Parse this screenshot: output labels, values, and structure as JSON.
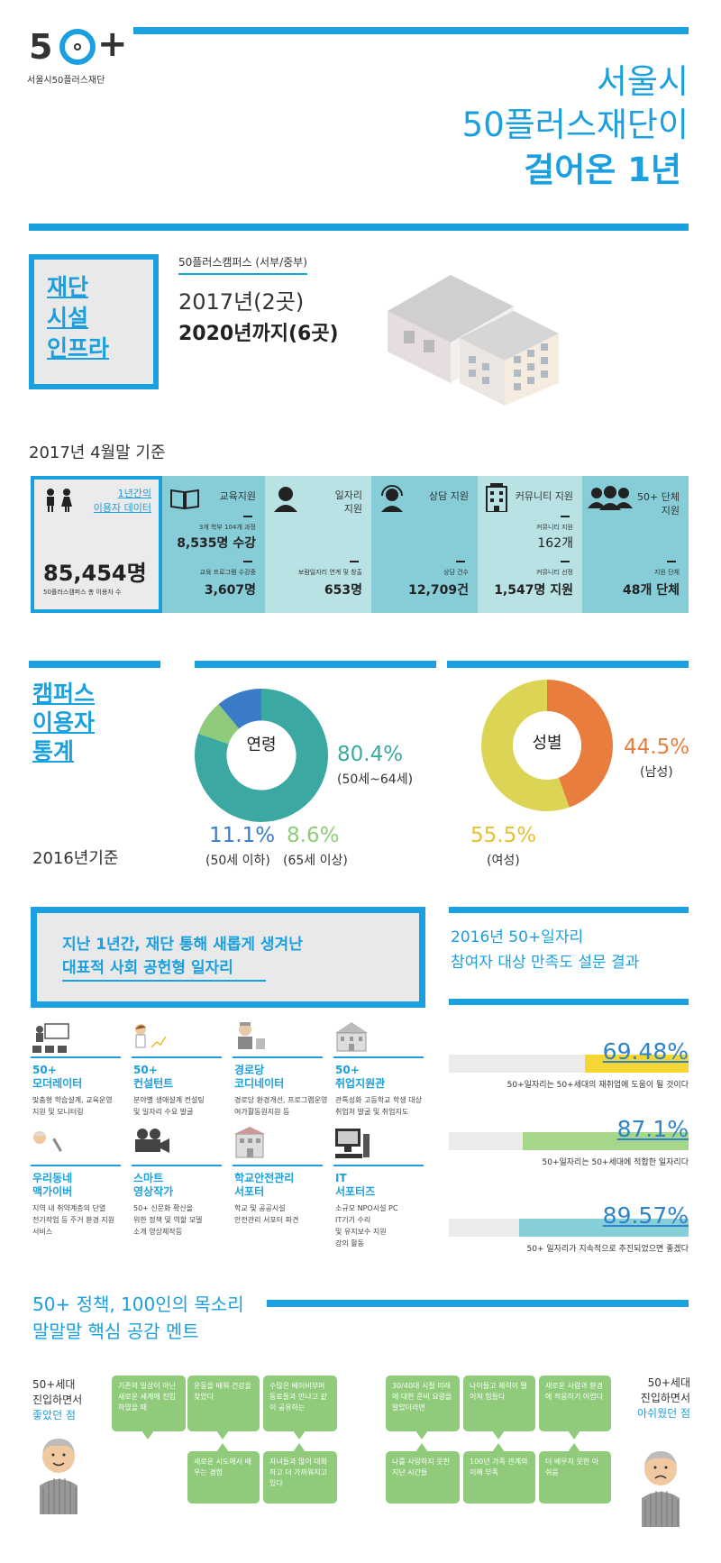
{
  "header": {
    "logo_text": "50+",
    "logo_sub": "서울시50플러스재단",
    "title_line1": "서울시",
    "title_line2": "50플러스재단이",
    "title_line3": "걸어온 1년",
    "accent_color": "#1a9fdf"
  },
  "facility": {
    "box_lines": [
      "재단",
      "시설",
      "인프라"
    ],
    "campus_label": "50플러스캠퍼스 (서부/중부)",
    "year_2017": "2017년(2곳)",
    "year_2020": "2020년까지(6곳)"
  },
  "stats": {
    "date_label": "2017년 4월말 기준",
    "user_data_label": [
      "1년간의",
      "이용자 데이터"
    ],
    "total_value": "85,454명",
    "total_caption": "50플러스캠퍼스 총 이용자 수",
    "columns": [
      {
        "icon": "book-icon",
        "label": "교육지원",
        "sub1": "3개 학부 104개 과정",
        "val1": "8,535명 수강",
        "sub2": "교육 프로그램 수강중",
        "val2": "3,607명"
      },
      {
        "icon": "worker-icon",
        "label": "일자리\n지원",
        "sub1": "",
        "val1": "",
        "sub2": "보람일자리 연계 및 창출",
        "val2": "653명"
      },
      {
        "icon": "headset-icon",
        "label": "상담 지원",
        "sub1": "",
        "val1": "",
        "sub2": "상담 건수",
        "val2": "12,709건"
      },
      {
        "icon": "building-icon",
        "label": "커뮤니티 지원",
        "sub1": "커뮤니티 지원",
        "val1": "162개",
        "sub2": "커뮤니티 선정",
        "val2": "1,547명 지원"
      },
      {
        "icon": "group-icon",
        "label": "50+ 단체\n지원",
        "sub1": "",
        "val1": "",
        "sub2": "지원 단체",
        "val2": "48개 단체"
      }
    ]
  },
  "campus": {
    "title_lines": [
      "캠퍼스",
      "이용자",
      "통계"
    ],
    "basis": "2016년기준",
    "age": {
      "label": "연령",
      "slices": [
        {
          "pct": 80.4,
          "text": "80.4%",
          "desc": "(50세~64세)",
          "color": "#3ba9a2"
        },
        {
          "pct": 8.6,
          "text": "8.6%",
          "desc": "(65세 이상)",
          "color": "#8fcb7a"
        },
        {
          "pct": 11.1,
          "text": "11.1%",
          "desc": "(50세 이하)",
          "color": "#3a7cc8"
        }
      ]
    },
    "gender": {
      "label": "성별",
      "slices": [
        {
          "pct": 44.5,
          "text": "44.5%",
          "desc": "(남성)",
          "color": "#e87d3e"
        },
        {
          "pct": 55.5,
          "text": "55.5%",
          "desc": "(여성)",
          "color": "#dcd455"
        }
      ]
    }
  },
  "jobs": {
    "heading_lines": [
      "지난 1년간, 재단 통해 새롭게 생겨난",
      "대표적 사회 공헌형 일자리"
    ],
    "items": [
      {
        "icon": "presenter-icon",
        "title": [
          "50+",
          "모더레이터"
        ],
        "desc": [
          "맞춤형 학습설계, 교육운영",
          "지원 및 모니터링"
        ]
      },
      {
        "icon": "consultant-icon",
        "title": [
          "50+",
          "컨설턴트"
        ],
        "desc": [
          "분야별 생애설계 컨설팅",
          "및 일자리 수요 발굴"
        ]
      },
      {
        "icon": "elder-icon",
        "title": [
          "경로당",
          "코디네이터"
        ],
        "desc": [
          "경로당 환경개선, 프로그램운영",
          "여가활동원지원 등"
        ]
      },
      {
        "icon": "school-icon",
        "title": [
          "50+",
          "취업지원관"
        ],
        "desc": [
          "관특성화 고등학교 학생 대상",
          "취업처 발굴 및 취업지도"
        ]
      },
      {
        "icon": "repair-icon",
        "title": [
          "우리동네",
          "맥가이버"
        ],
        "desc": [
          "지역 내 취약계층의 단열",
          "전기작업 등 주거 환경 지원",
          "서비스"
        ]
      },
      {
        "icon": "camera-icon",
        "title": [
          "스마트",
          "영상작가"
        ],
        "desc": [
          "50+ 신문화 확산을",
          "위한 정책 및 역할 모델",
          "소개 영상제작등"
        ]
      },
      {
        "icon": "safety-icon",
        "title": [
          "학교안전관리",
          "서포터"
        ],
        "desc": [
          "학교 및 공공시설",
          "안전관리 서포터 파견"
        ]
      },
      {
        "icon": "computer-icon",
        "title": [
          "IT",
          "서포터즈"
        ],
        "desc": [
          "소규모 NPO시설 PC",
          "IT기기 수리",
          "및 유지보수 지원",
          "강의 활동"
        ]
      }
    ]
  },
  "survey": {
    "heading_lines": [
      "2016년 50+일자리",
      "참여자 대상 만족도 설문 결과"
    ],
    "items": [
      {
        "pct": 69.48,
        "text": "69.48%",
        "caption": "50+일자리는 50+세대의 재취업에 도움이 될 것이다",
        "color": "#f5d633"
      },
      {
        "pct": 87.1,
        "text": "87.1%",
        "caption": "50+일자리는 50+세대에 적합한 일자리다",
        "color": "#a6d68a"
      },
      {
        "pct": 89.57,
        "text": "89.57%",
        "caption": "50+ 일자리가 지속적으로 추진되었으면 좋겠다",
        "color": "#86cfd9"
      }
    ]
  },
  "voices": {
    "heading_lines": [
      "50+ 정책, 100인의 목소리",
      "말말말 핵심 공감 멘트"
    ],
    "left_label": [
      "50+세대",
      "진입하면서"
    ],
    "left_highlight": "좋았던 점",
    "right_label": [
      "50+세대",
      "진입하면서"
    ],
    "right_highlight": "아쉬웠던 점",
    "left_bubbles": [
      "기존의 일상이 아닌 새로운 세계에 진입하였을 때",
      "운동을 배워 건강을 찾았다",
      "수많은 베이비부머 동료들과 만나고 같이 공유하는",
      "새로운 시도에서 배우는 경험",
      "자녀들과 많이 대화하고 더 가까워지고 있다"
    ],
    "right_bubbles": [
      "30/40대 시절 미래에 대한 준비 요령을 알았더라면",
      "나이들고 체력이 떨어져 힘들다",
      "새로운 사람과 환경에 적응하기 어렵다",
      "나를 사랑하지 못한 지난 시간들",
      "100년 가족 관계의 이해 부족",
      "더 배우지 못한 아쉬움"
    ]
  }
}
